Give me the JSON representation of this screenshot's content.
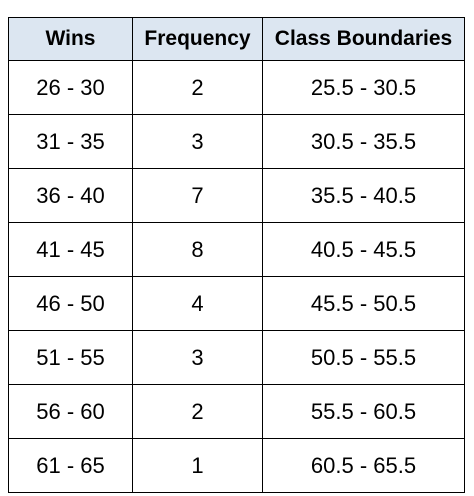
{
  "table": {
    "headers": [
      "Wins",
      "Frequency",
      "Class Boundaries"
    ],
    "rows": [
      [
        "26 - 30",
        "2",
        "25.5 - 30.5"
      ],
      [
        "31 - 35",
        "3",
        "30.5 - 35.5"
      ],
      [
        "36 - 40",
        "7",
        "35.5 - 40.5"
      ],
      [
        "41 - 45",
        "8",
        "40.5 - 45.5"
      ],
      [
        "46 - 50",
        "4",
        "45.5 - 50.5"
      ],
      [
        "51 - 55",
        "3",
        "50.5 - 55.5"
      ],
      [
        "56 - 60",
        "2",
        "55.5 - 60.5"
      ],
      [
        "61 - 65",
        "1",
        "60.5 - 65.5"
      ]
    ]
  },
  "colors": {
    "header_background": "#dce6f1",
    "border": "#000000",
    "text": "#000000"
  }
}
